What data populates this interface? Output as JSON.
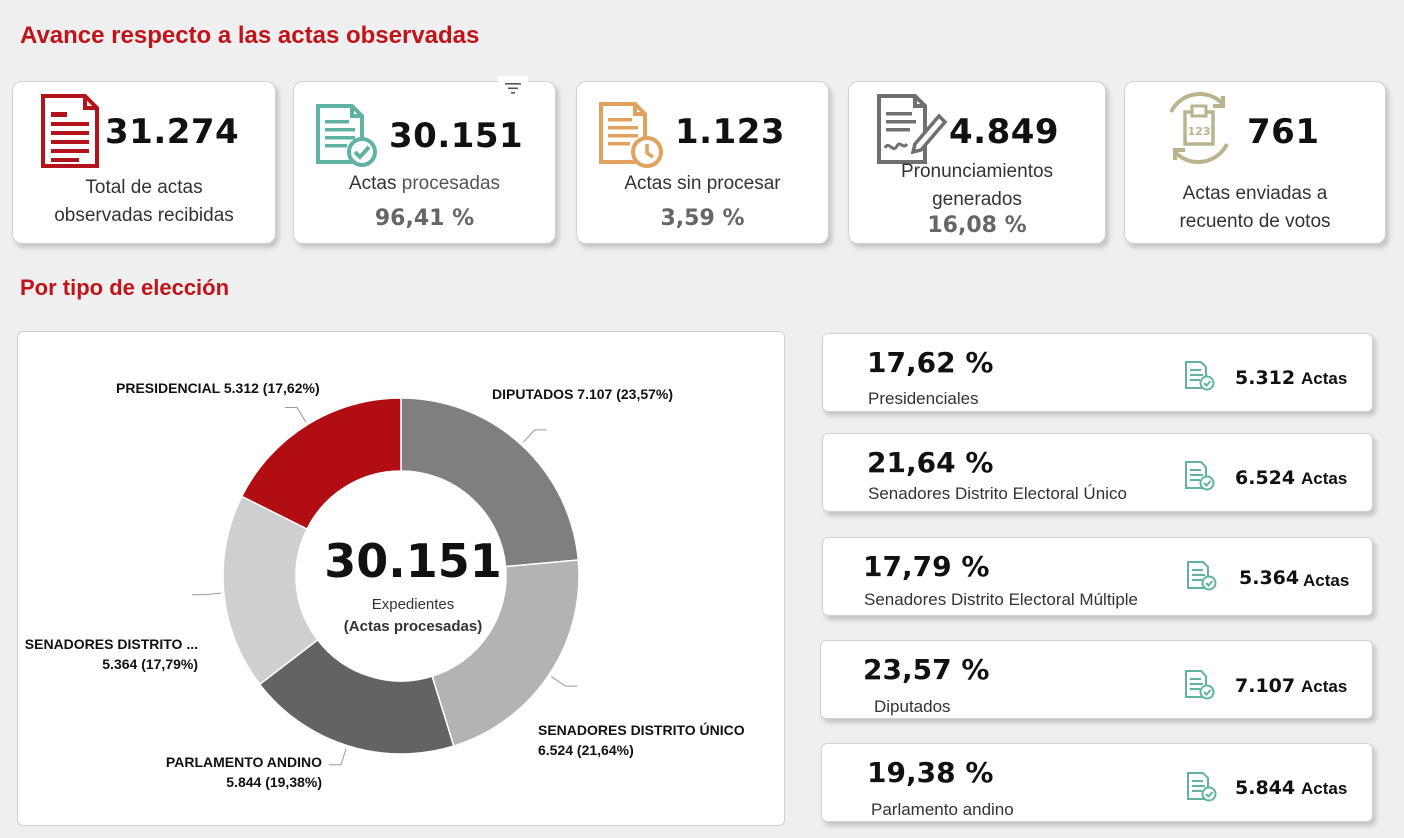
{
  "header": {
    "title": "Avance respecto a las actas observadas",
    "subtitle": "Por tipo de elección"
  },
  "kpis": [
    {
      "value": "31.274",
      "label_line1": "Total de actas",
      "label_line2": "observadas recibidas",
      "icon": "document-lines-icon",
      "color": "#b3141b"
    },
    {
      "value": "30.151",
      "label_prefix": "Actas ",
      "label_suffix": "procesadas",
      "pct": "96,41 %",
      "icon": "document-check-icon",
      "color": "#5fb3a0"
    },
    {
      "value": "1.123",
      "label": "Actas sin procesar",
      "pct": "3,59 %",
      "icon": "document-clock-icon",
      "color": "#e0a25e"
    },
    {
      "value": "4.849",
      "label_line1": "Pronunciamientos",
      "label_line2": "generados",
      "pct": "16,08 %",
      "icon": "document-signature-icon",
      "color": "#707070"
    },
    {
      "value": "761",
      "label_line1": "Actas enviadas a",
      "label_line2": "recuento de votos",
      "icon": "ballot-box-recount-icon",
      "color": "#b9b48e"
    }
  ],
  "donut": {
    "center_value": "30.151",
    "center_line1": "Expedientes",
    "center_line2": "(Actas procesadas)"
  },
  "chart_data": {
    "type": "pie",
    "categories": [
      "DIPUTADOS",
      "SENADORES DISTRITO ÚNICO",
      "PARLAMENTO ANDINO",
      "SENADORES DISTRITO ...",
      "PRESIDENCIAL"
    ],
    "values": [
      7107,
      6524,
      5844,
      5364,
      5312
    ],
    "percents": [
      23.57,
      21.64,
      19.38,
      17.79,
      17.62
    ],
    "colors": [
      "#7f7f7f",
      "#b3b3b3",
      "#636363",
      "#cfcfcf",
      "#b10d12"
    ],
    "labels": [
      {
        "line1": "DIPUTADOS 7.107 (23,57%)",
        "line2": ""
      },
      {
        "line1": "SENADORES DISTRITO ÚNICO",
        "line2": "6.524 (21,64%)"
      },
      {
        "line1": "PARLAMENTO ANDINO",
        "line2": "5.844 (19,38%)"
      },
      {
        "line1": "SENADORES DISTRITO ...",
        "line2": "5.364 (17,79%)"
      },
      {
        "line1": "PRESIDENCIAL 5.312 (17,62%)",
        "line2": ""
      }
    ]
  },
  "breakdown": [
    {
      "pct": "17,62 %",
      "name": "Presidenciales",
      "count": "5.312",
      "unit": "Actas"
    },
    {
      "pct": "21,64 %",
      "name": "Senadores Distrito Electoral Único",
      "count": "6.524",
      "unit": "Actas"
    },
    {
      "pct": "17,79 %",
      "name": "Senadores Distrito Electoral Múltiple",
      "count": "5.364",
      "unit": "Actas"
    },
    {
      "pct": "23,57 %",
      "name": "Diputados",
      "count": "7.107",
      "unit": "Actas"
    },
    {
      "pct": "19,38 %",
      "name": "Parlamento andino",
      "count": "5.844",
      "unit": "Actas"
    }
  ]
}
